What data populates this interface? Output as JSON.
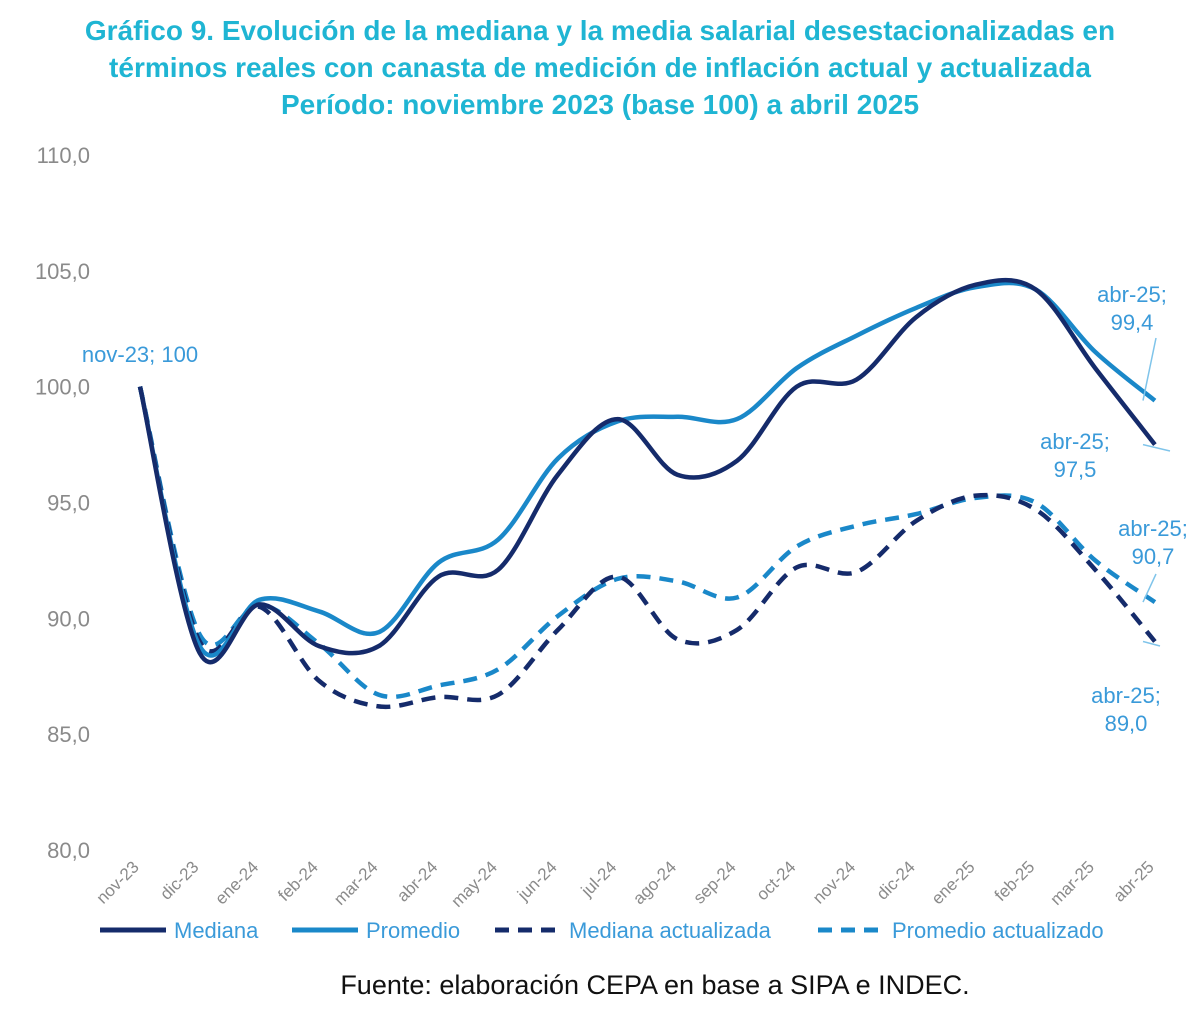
{
  "title": {
    "line1": "Gráfico 9. Evolución de la mediana y la media salarial desestacionalizadas en",
    "line2": "términos reales con canasta de medición de inflación actual y actualizada",
    "line3": "Período: noviembre 2023 (base 100) a abril 2025"
  },
  "source": "Fuente: elaboración CEPA en base a SIPA e INDEC.",
  "colors": {
    "title": "#1fb5d3",
    "mediana": "#152b6b",
    "promedio": "#1a88c9",
    "axis_text": "#8a8a8a",
    "label_text": "#3a9ad9"
  },
  "chart_data": {
    "type": "line",
    "categories": [
      "nov-23",
      "dic-23",
      "ene-24",
      "feb-24",
      "mar-24",
      "abr-24",
      "may-24",
      "jun-24",
      "jul-24",
      "ago-24",
      "sep-24",
      "oct-24",
      "nov-24",
      "dic-24",
      "ene-25",
      "feb-25",
      "mar-25",
      "abr-25"
    ],
    "ylim": [
      80,
      110
    ],
    "yticks": [
      "80,0",
      "85,0",
      "90,0",
      "95,0",
      "100,0",
      "105,0",
      "110,0"
    ],
    "grid": false,
    "legend_position": "bottom",
    "series": [
      {
        "name": "Mediana",
        "style": "solid",
        "color": "#152b6b",
        "values": [
          100,
          88.5,
          90.6,
          88.8,
          88.8,
          91.8,
          92.1,
          96.2,
          98.6,
          96.2,
          96.8,
          100.0,
          100.3,
          103.0,
          104.4,
          104.2,
          100.8,
          97.5
        ]
      },
      {
        "name": "Promedio",
        "style": "solid",
        "color": "#1a88c9",
        "values": [
          100,
          88.8,
          90.8,
          90.3,
          89.4,
          92.4,
          93.4,
          96.9,
          98.5,
          98.7,
          98.6,
          100.8,
          102.2,
          103.4,
          104.3,
          104.2,
          101.5,
          99.4
        ]
      },
      {
        "name": "Mediana actualizada",
        "style": "dashed",
        "color": "#152b6b",
        "values": [
          100,
          89.0,
          90.5,
          87.3,
          86.2,
          86.6,
          86.7,
          89.5,
          91.8,
          89.1,
          89.5,
          92.2,
          92.0,
          94.2,
          95.3,
          94.7,
          92.1,
          89.0
        ]
      },
      {
        "name": "Promedio actualizado",
        "style": "dashed",
        "color": "#1a88c9",
        "values": [
          100,
          89.3,
          90.6,
          88.9,
          86.7,
          87.1,
          87.8,
          90.1,
          91.7,
          91.6,
          90.9,
          93.1,
          94.0,
          94.5,
          95.2,
          95.0,
          92.5,
          90.7
        ]
      }
    ],
    "annotations": [
      {
        "line1": "nov-23; 100",
        "line2": ""
      },
      {
        "line1": "abr-25;",
        "line2": "99,4"
      },
      {
        "line1": "abr-25;",
        "line2": "97,5"
      },
      {
        "line1": "abr-25;",
        "line2": "90,7"
      },
      {
        "line1": "abr-25;",
        "line2": "89,0"
      }
    ]
  }
}
